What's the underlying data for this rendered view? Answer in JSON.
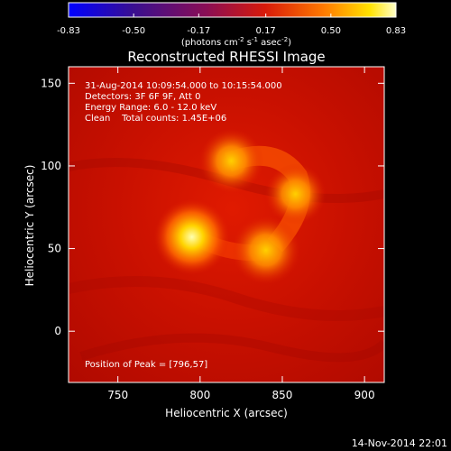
{
  "chart_data": {
    "type": "heatmap",
    "title": "Reconstructed RHESSI Image",
    "xlabel": "Heliocentric X (arcsec)",
    "ylabel": "Heliocentric Y (arcsec)",
    "x_range": [
      720,
      912
    ],
    "y_range": [
      -31,
      160
    ],
    "x_ticks": [
      750,
      800,
      850,
      900
    ],
    "y_ticks": [
      0,
      50,
      100,
      150
    ],
    "x_tick_labels": [
      "750",
      "800",
      "850",
      "900"
    ],
    "y_tick_labels": [
      "0",
      "50",
      "100",
      "150"
    ],
    "colorbar": {
      "colormap": "hot (blue-purple-red-yellow-white)",
      "range": [
        -0.83,
        0.83
      ],
      "tick_values": [
        -0.83,
        -0.5,
        -0.17,
        0.17,
        0.5,
        0.83
      ],
      "tick_labels": [
        "-0.83",
        "-0.50",
        "-0.17",
        "0.17",
        "0.50",
        "0.83"
      ],
      "unit_prefix": "(photons cm",
      "unit_sup1": "-2",
      "unit_mid1": " s",
      "unit_sup2": "-1",
      "unit_mid2": " asec",
      "unit_sup3": "-2",
      "unit_suffix": ")"
    },
    "info_lines": [
      "31-Aug-2014 10:09:54.000 to 10:15:54.000",
      "Detectors: 3F 6F 9F, Att 0",
      "Energy Range: 6.0 - 12.0 keV",
      "Clean    Total counts: 1.45E+06"
    ],
    "peak_label": "Position of Peak = [796,57]",
    "peak_position": [
      796,
      57
    ],
    "sources": [
      {
        "x": 795,
        "y": 57,
        "intensity": 0.83
      },
      {
        "x": 840,
        "y": 49,
        "intensity": 0.72
      },
      {
        "x": 819,
        "y": 103,
        "intensity": 0.66
      },
      {
        "x": 858,
        "y": 83,
        "intensity": 0.6
      }
    ]
  },
  "footer": {
    "date": "14-Nov-2014 22:01"
  }
}
